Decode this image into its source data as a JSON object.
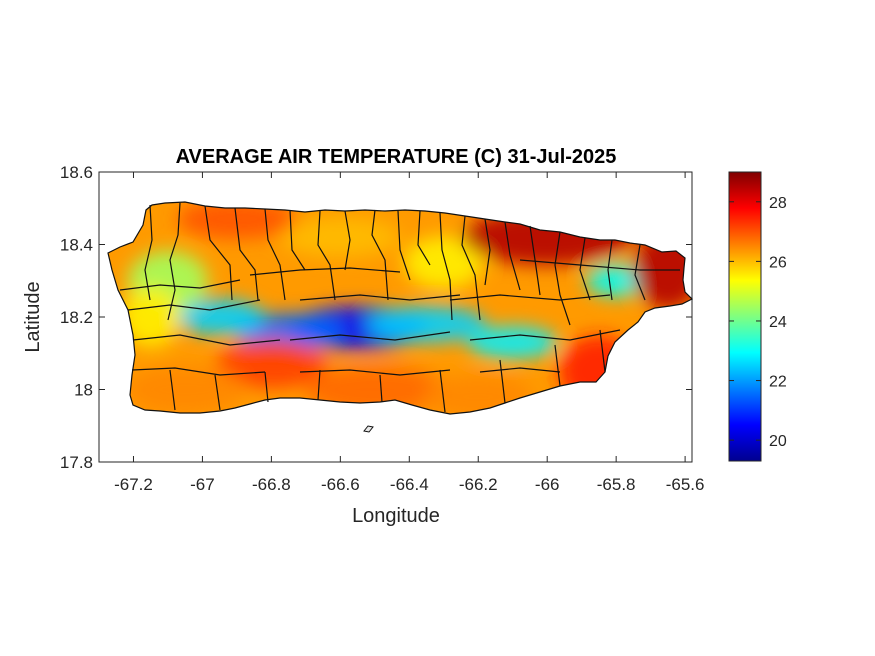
{
  "chart_data": {
    "type": "heatmap",
    "title": "AVERAGE AIR TEMPERATURE (C) 31-Jul-2025",
    "xlabel": "Longitude",
    "ylabel": "Latitude",
    "xlim": [
      -67.3,
      -65.58
    ],
    "ylim": [
      17.8,
      18.6
    ],
    "x_ticks": [
      -67.2,
      -67,
      -66.8,
      -66.6,
      -66.4,
      -66.2,
      -66,
      -65.8,
      -65.6
    ],
    "x_tick_labels": [
      "-67.2",
      "-67",
      "-66.8",
      "-66.6",
      "-66.4",
      "-66.2",
      "-66",
      "-65.8",
      "-65.6"
    ],
    "y_ticks": [
      17.8,
      18,
      18.2,
      18.4,
      18.6
    ],
    "y_tick_labels": [
      "17.8",
      "18",
      "18.2",
      "18.4",
      "18.6"
    ],
    "colorbar": {
      "colormap": "jet",
      "range": [
        19.3,
        29
      ],
      "ticks": [
        20,
        22,
        24,
        26,
        28
      ],
      "tick_labels": [
        "20",
        "22",
        "24",
        "26",
        "28"
      ]
    },
    "temperature_samples": [
      {
        "lon": -66.55,
        "lat": 18.17,
        "t": 20.5
      },
      {
        "lon": -66.75,
        "lat": 18.16,
        "t": 21.5
      },
      {
        "lon": -66.35,
        "lat": 18.18,
        "t": 22.5
      },
      {
        "lon": -66.95,
        "lat": 18.2,
        "t": 22.5
      },
      {
        "lon": -66.1,
        "lat": 18.13,
        "t": 22.8
      },
      {
        "lon": -65.8,
        "lat": 18.3,
        "t": 23.0
      },
      {
        "lon": -67.1,
        "lat": 18.3,
        "t": 24.5
      },
      {
        "lon": -67.15,
        "lat": 18.2,
        "t": 25.5
      },
      {
        "lon": -66.3,
        "lat": 18.35,
        "t": 25.5
      },
      {
        "lon": -66.6,
        "lat": 18.42,
        "t": 26.0
      },
      {
        "lon": -66.8,
        "lat": 18.07,
        "t": 27.2
      },
      {
        "lon": -66.9,
        "lat": 18.47,
        "t": 27.0
      },
      {
        "lon": -66.5,
        "lat": 18.0,
        "t": 26.8
      },
      {
        "lon": -66.0,
        "lat": 18.42,
        "t": 28.5
      },
      {
        "lon": -65.65,
        "lat": 18.33,
        "t": 28.5
      },
      {
        "lon": -65.85,
        "lat": 18.05,
        "t": 27.5
      },
      {
        "lon": -67.05,
        "lat": 18.0,
        "t": 26.5
      },
      {
        "lon": -66.2,
        "lat": 17.98,
        "t": 26.5
      }
    ]
  }
}
